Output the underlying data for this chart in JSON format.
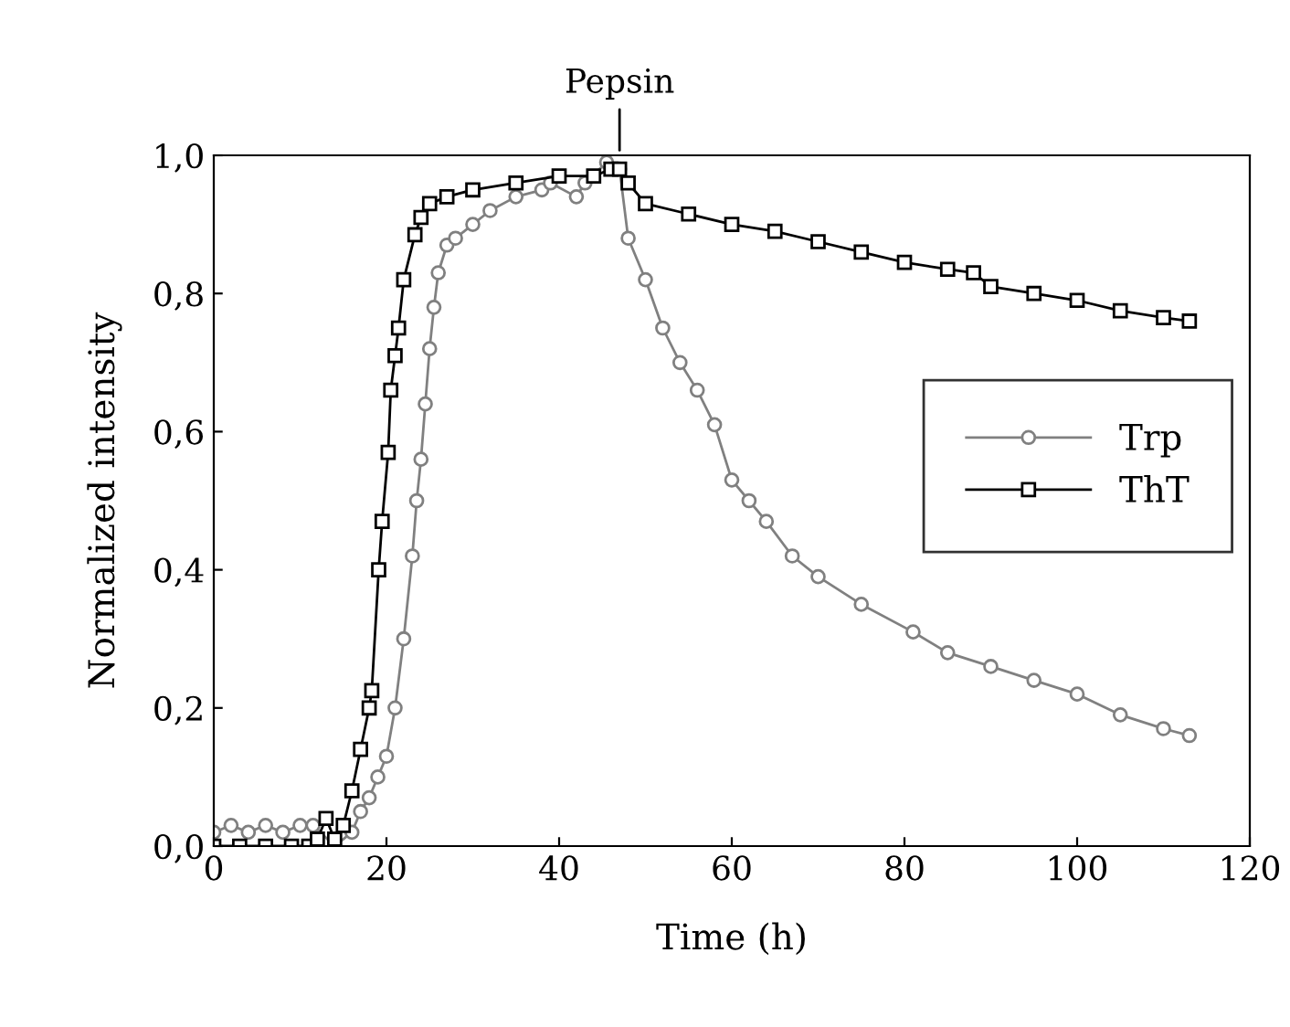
{
  "chart_data": {
    "type": "line",
    "xlabel": "Time (h)",
    "ylabel": "Normalized intensity",
    "xlim": [
      0,
      120
    ],
    "xticks": [
      0,
      20,
      40,
      60,
      80,
      100,
      120
    ],
    "ylim": [
      0,
      1
    ],
    "yticks": [
      {
        "value": 0,
        "label": "0,0"
      },
      {
        "value": 0.2,
        "label": "0,2"
      },
      {
        "value": 0.4,
        "label": "0,4"
      },
      {
        "value": 0.6,
        "label": "0,6"
      },
      {
        "value": 0.8,
        "label": "0,8"
      },
      {
        "value": 1,
        "label": "1,0"
      }
    ],
    "grid": false,
    "legend": "right",
    "line_style": "solid",
    "annotations": [
      {
        "text": "Pepsin",
        "x": 47,
        "y": 1.0
      }
    ],
    "series": [
      {
        "name": "Trp",
        "color": "#808080",
        "marker": "circle",
        "x": [
          0,
          2,
          4,
          6,
          8,
          10,
          11.5,
          14,
          16,
          17,
          18,
          19,
          20,
          21,
          22,
          23,
          23.5,
          24,
          24.5,
          25,
          25.5,
          26,
          27,
          28,
          30,
          32,
          35,
          38,
          39,
          42,
          43,
          45.5,
          47,
          48,
          50,
          52,
          54,
          56,
          58,
          60,
          62,
          64,
          67,
          70,
          75,
          81,
          85,
          90,
          95,
          100,
          105,
          110,
          113
        ],
        "values": [
          0.02,
          0.03,
          0.02,
          0.03,
          0.02,
          0.03,
          0.03,
          0.0,
          0.02,
          0.05,
          0.07,
          0.1,
          0.13,
          0.2,
          0.3,
          0.42,
          0.5,
          0.56,
          0.64,
          0.72,
          0.78,
          0.83,
          0.87,
          0.88,
          0.9,
          0.92,
          0.94,
          0.95,
          0.96,
          0.94,
          0.96,
          0.99,
          0.98,
          0.88,
          0.82,
          0.75,
          0.7,
          0.66,
          0.61,
          0.53,
          0.5,
          0.47,
          0.42,
          0.39,
          0.35,
          0.31,
          0.28,
          0.26,
          0.24,
          0.22,
          0.19,
          0.17,
          0.16
        ]
      },
      {
        "name": "ThT",
        "color": "#000000",
        "marker": "square",
        "x": [
          0,
          3,
          6,
          9,
          11,
          12,
          13,
          14,
          15,
          16,
          17,
          18,
          18.3,
          19.1,
          19.5,
          20.2,
          20.5,
          21,
          21.4,
          22,
          23.3,
          24,
          25,
          27,
          30,
          35,
          40,
          44,
          46,
          47,
          48,
          50,
          55,
          60,
          65,
          70,
          75,
          80,
          85,
          88,
          90,
          95,
          100,
          105,
          110,
          113
        ],
        "values": [
          0.0,
          0.0,
          0.0,
          0.0,
          0.0,
          0.01,
          0.04,
          0.01,
          0.03,
          0.08,
          0.14,
          0.2,
          0.225,
          0.4,
          0.47,
          0.57,
          0.66,
          0.71,
          0.75,
          0.82,
          0.885,
          0.91,
          0.93,
          0.94,
          0.95,
          0.96,
          0.97,
          0.97,
          0.98,
          0.98,
          0.96,
          0.93,
          0.915,
          0.9,
          0.89,
          0.875,
          0.86,
          0.845,
          0.835,
          0.83,
          0.81,
          0.8,
          0.79,
          0.775,
          0.765,
          0.76
        ]
      }
    ]
  }
}
